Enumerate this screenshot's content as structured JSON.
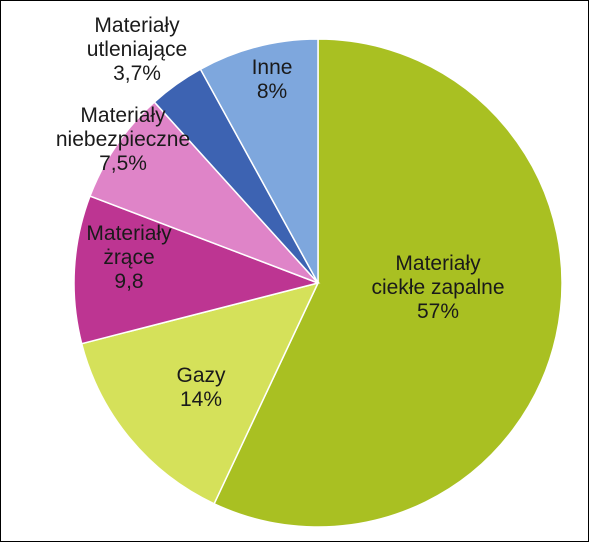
{
  "chart_data": {
    "type": "pie",
    "title": "",
    "start_angle_deg": 0,
    "direction": "clockwise",
    "slices": [
      {
        "label_lines": [
          "Materiały",
          "ciekłe zapalne"
        ],
        "value_label": "57%",
        "value": 57,
        "color": "#a9c022"
      },
      {
        "label_lines": [
          "Gazy"
        ],
        "value_label": "14%",
        "value": 14,
        "color": "#d5e15a"
      },
      {
        "label_lines": [
          "Materiały",
          "żrące"
        ],
        "value_label": "9,8",
        "value": 9.8,
        "color": "#bd3592"
      },
      {
        "label_lines": [
          "Materiały",
          "niebezpieczne"
        ],
        "value_label": "7,5%",
        "value": 7.5,
        "color": "#df84c8"
      },
      {
        "label_lines": [
          "Materiały",
          "utleniające"
        ],
        "value_label": "3,7%",
        "value": 3.7,
        "color": "#3d63b2"
      },
      {
        "label_lines": [
          "Inne"
        ],
        "value_label": "8%",
        "value": 8,
        "color": "#7ea7dd"
      }
    ]
  }
}
